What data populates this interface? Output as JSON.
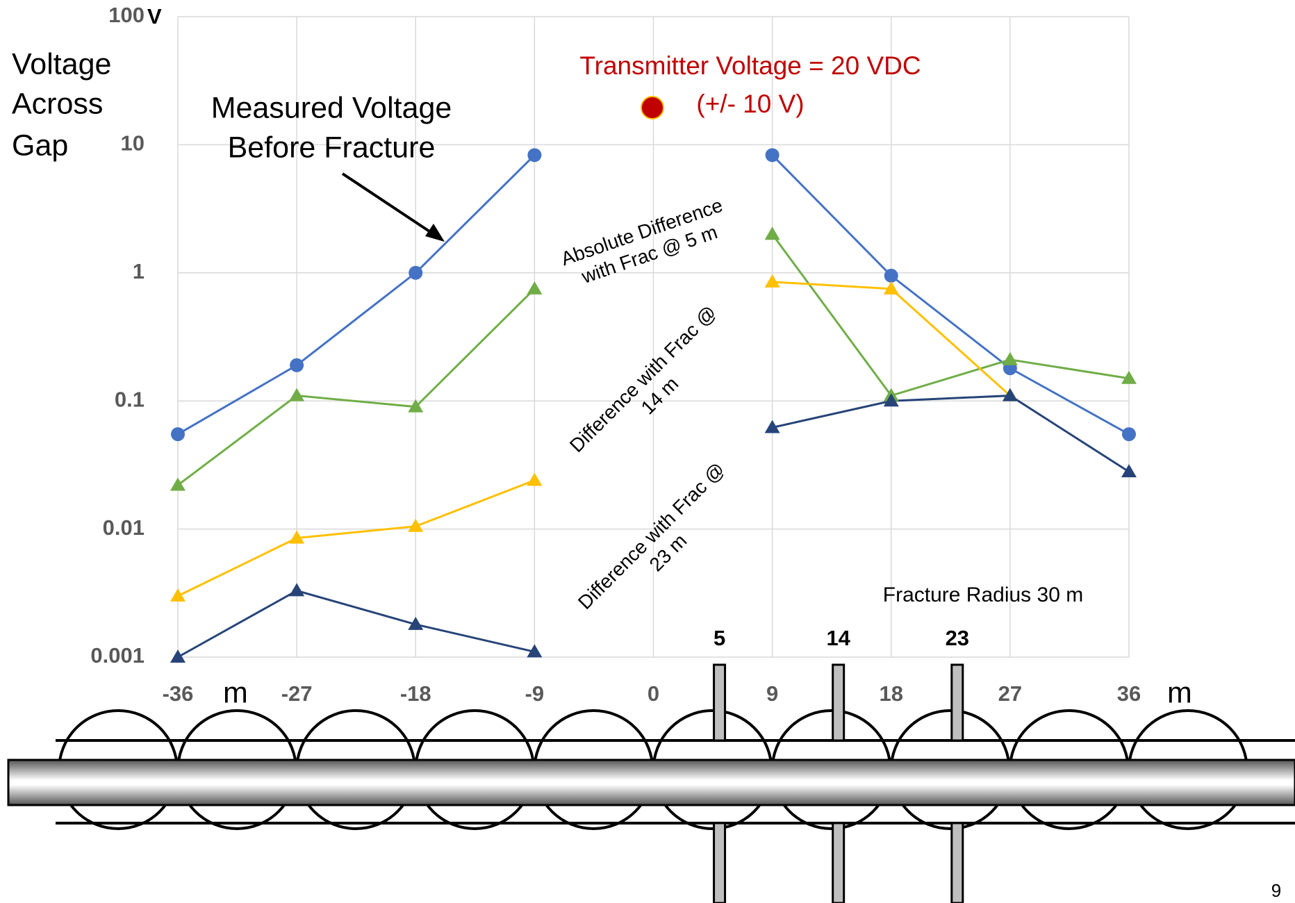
{
  "chart_data": {
    "type": "line",
    "y_label": [
      "Voltage",
      "Across",
      "Gap"
    ],
    "y_unit": "V",
    "x_unit": "m",
    "log_y": true,
    "grid": true,
    "x": [
      -36,
      -27,
      -18,
      -9,
      0,
      9,
      18,
      27,
      36
    ],
    "xlim": [
      -36,
      36
    ],
    "xticks": [
      -36,
      -27,
      -18,
      -9,
      0,
      9,
      18,
      27,
      36
    ],
    "ylim": [
      0.001,
      100
    ],
    "yticks": [
      0.001,
      0.01,
      0.1,
      1,
      10,
      100
    ],
    "series": [
      {
        "color": "#4472c4",
        "marker": "circle",
        "values": [
          0.055,
          0.19,
          1.0,
          8.3,
          null,
          8.3,
          0.95,
          0.18,
          0.055
        ]
      },
      {
        "color": "#70ad47",
        "marker": "triangle",
        "values": [
          0.022,
          0.11,
          0.09,
          0.75,
          null,
          2.0,
          0.11,
          0.21,
          0.15
        ]
      },
      {
        "color": "#ffc000",
        "marker": "triangle",
        "values": [
          0.003,
          0.0085,
          0.0105,
          0.024,
          null,
          0.85,
          0.75,
          0.11,
          null
        ]
      },
      {
        "color": "#264478",
        "marker": "triangle",
        "values": [
          0.001,
          0.0033,
          0.0018,
          0.0011,
          null,
          0.062,
          0.1,
          0.11,
          0.028
        ]
      }
    ],
    "transmitter": [
      "Transmitter Voltage = 20 VDC",
      "(+/- 10 V)"
    ],
    "measured_note": [
      "Measured Voltage",
      "Before Fracture"
    ],
    "annotations": [
      [
        "Absolute Difference",
        "with Frac @ 5 m"
      ],
      [
        "Difference with Frac @",
        "14 m"
      ],
      [
        "Difference with Frac @",
        "23 m"
      ]
    ],
    "fracture_note": "Fracture Radius 30 m",
    "fractures": [
      5,
      14,
      23
    ]
  },
  "page_number": "9"
}
